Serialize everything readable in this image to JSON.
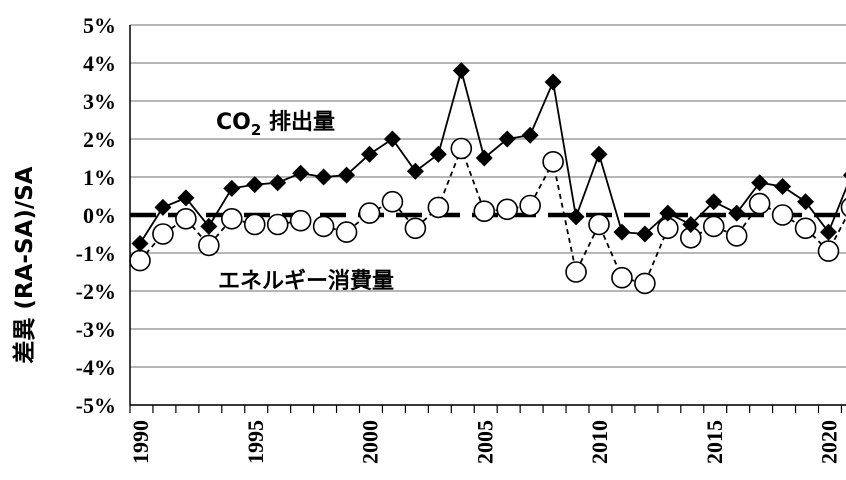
{
  "chart_data": {
    "type": "line",
    "ylabel": "差異 (RA-SA)/SA",
    "ylim": [
      -5,
      5
    ],
    "y_ticks": [
      "5%",
      "4%",
      "3%",
      "2%",
      "1%",
      "0%",
      "-1%",
      "-2%",
      "-3%",
      "-4%",
      "-5%"
    ],
    "x_ticks": [
      "1990",
      "1995",
      "2000",
      "2005",
      "2010",
      "2015",
      "2020"
    ],
    "x": [
      1990,
      1991,
      1992,
      1993,
      1994,
      1995,
      1996,
      1997,
      1998,
      1999,
      2000,
      2001,
      2002,
      2003,
      2004,
      2005,
      2006,
      2007,
      2008,
      2009,
      2010,
      2011,
      2012,
      2013,
      2014,
      2015,
      2016,
      2017,
      2018,
      2019,
      2020,
      2021
    ],
    "grid": true,
    "zero_line": "dashed",
    "series": [
      {
        "name": "CO2 排出量",
        "label_main": "CO",
        "label_sub": "2",
        "label_rest": " 排出量",
        "marker": "filled-diamond",
        "line_style": "solid",
        "color": "#000000",
        "values": [
          -0.75,
          0.2,
          0.45,
          -0.3,
          0.7,
          0.8,
          0.85,
          1.1,
          1.0,
          1.05,
          1.6,
          2.0,
          1.15,
          1.6,
          3.8,
          1.5,
          2.0,
          2.1,
          3.5,
          -0.05,
          1.6,
          -0.45,
          -0.5,
          0.05,
          -0.25,
          0.35,
          0.05,
          0.85,
          0.75,
          0.35,
          -0.45,
          1.05
        ]
      },
      {
        "name": "エネルギー消費量",
        "marker": "open-circle",
        "line_style": "dashed",
        "color": "#000000",
        "values": [
          -1.2,
          -0.5,
          -0.1,
          -0.8,
          -0.1,
          -0.25,
          -0.25,
          -0.15,
          -0.3,
          -0.45,
          0.05,
          0.35,
          -0.35,
          0.2,
          1.75,
          0.1,
          0.15,
          0.25,
          1.4,
          -1.5,
          -0.25,
          -1.65,
          -1.8,
          -0.35,
          -0.6,
          -0.3,
          -0.55,
          0.3,
          0.0,
          -0.35,
          -0.95,
          0.2
        ]
      }
    ]
  }
}
